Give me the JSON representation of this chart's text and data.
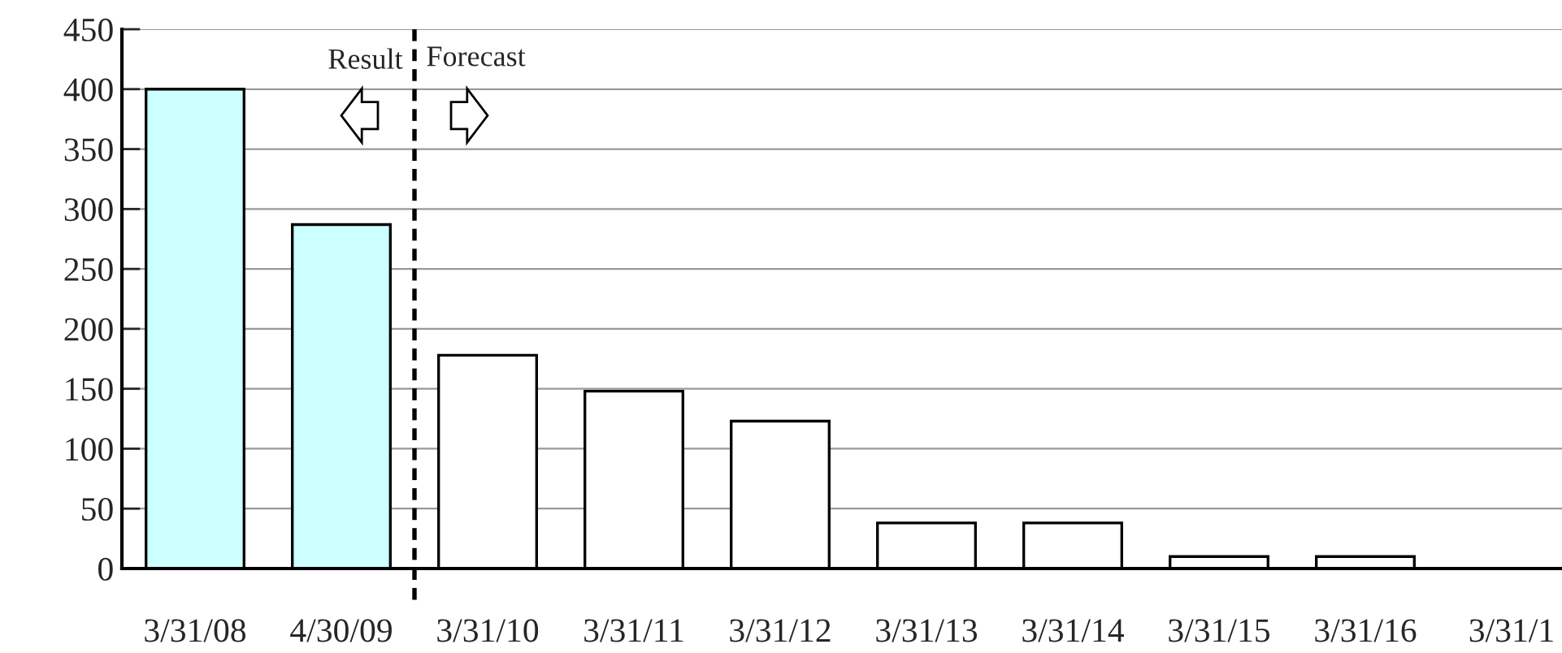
{
  "chart_data": {
    "type": "bar",
    "categories": [
      "3/31/08",
      "4/30/09",
      "3/31/10",
      "3/31/11",
      "3/31/12",
      "3/31/13",
      "3/31/14",
      "3/31/15",
      "3/31/16",
      "3/31/1"
    ],
    "values": [
      400,
      287,
      178,
      148,
      123,
      38,
      38,
      10,
      10,
      null
    ],
    "colors": [
      "#ccffff",
      "#ccffff",
      "#ffffff",
      "#ffffff",
      "#ffffff",
      "#ffffff",
      "#ffffff",
      "#ffffff",
      "#ffffff",
      null
    ],
    "ylim": [
      0,
      450
    ],
    "yticks": [
      0,
      50,
      100,
      150,
      200,
      250,
      300,
      350,
      400,
      450
    ],
    "grid": "y",
    "legend": false,
    "annotations": [
      "Result",
      "Forecast"
    ]
  }
}
